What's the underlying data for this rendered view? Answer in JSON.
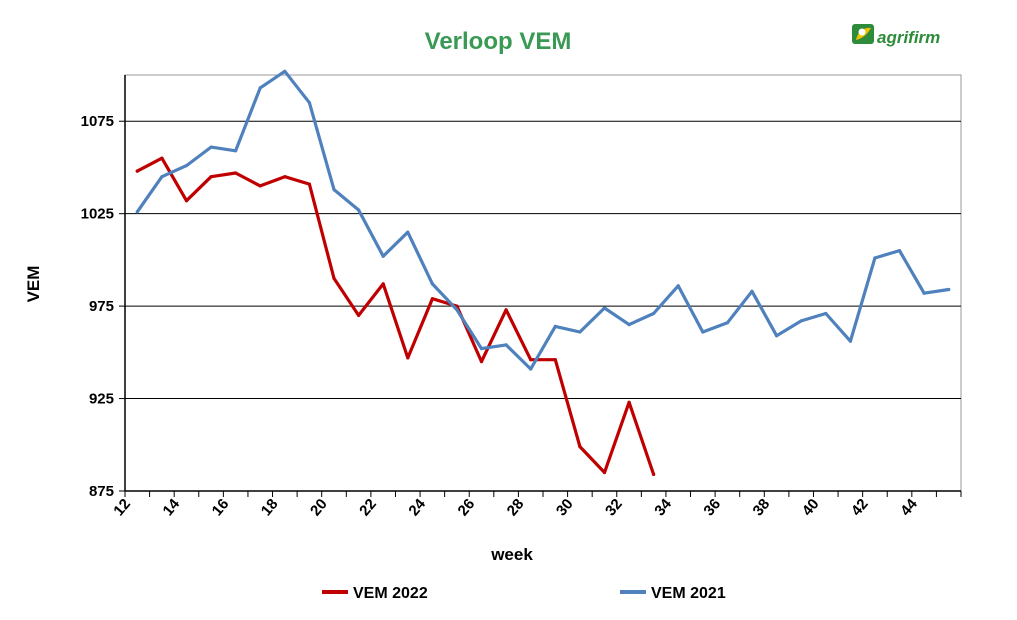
{
  "logo": {
    "text": "agrifirm",
    "color": "#2e8b3a",
    "accent": "#f2c200"
  },
  "chart_data": {
    "type": "line",
    "title": "Verloop VEM",
    "title_color": "#3a9a55",
    "xlabel": "week",
    "ylabel": "VEM",
    "xlim": [
      12,
      46
    ],
    "ylim": [
      875,
      1100
    ],
    "x_ticks": [
      12,
      14,
      16,
      18,
      20,
      22,
      24,
      26,
      28,
      30,
      32,
      34,
      36,
      38,
      40,
      42,
      44
    ],
    "y_ticks": [
      875,
      925,
      975,
      1025,
      1075
    ],
    "grid": "horizontal",
    "legend_position": "bottom",
    "series": [
      {
        "name": "VEM 2022",
        "color": "#c00000",
        "x": [
          12.5,
          13.5,
          14.5,
          15.5,
          16.5,
          17.5,
          18.5,
          19.5,
          20.5,
          21.5,
          22.5,
          23.5,
          24.5,
          25.5,
          26.5,
          27.5,
          28.5,
          29.5,
          30.5,
          31.5,
          32.5,
          33.5
        ],
        "values": [
          1048,
          1055,
          1032,
          1045,
          1047,
          1040,
          1045,
          1041,
          990,
          970,
          987,
          947,
          979,
          975,
          945,
          973,
          946,
          946,
          899,
          885,
          923,
          884
        ]
      },
      {
        "name": "VEM 2021",
        "color": "#4f81bd",
        "x": [
          12.5,
          13.5,
          14.5,
          15.5,
          16.5,
          17.5,
          18.5,
          19.5,
          20.5,
          21.5,
          22.5,
          23.5,
          24.5,
          25.5,
          26.5,
          27.5,
          28.5,
          29.5,
          30.5,
          31.5,
          32.5,
          33.5,
          34.5,
          35.5,
          36.5,
          37.5,
          38.5,
          39.5,
          40.5,
          41.5,
          42.5,
          43.5,
          44.5,
          45.5
        ],
        "values": [
          1026,
          1045,
          1051,
          1061,
          1059,
          1093,
          1102,
          1085,
          1038,
          1027,
          1002,
          1015,
          987,
          973,
          952,
          954,
          941,
          964,
          961,
          974,
          965,
          971,
          986,
          961,
          966,
          983,
          959,
          967,
          971,
          956,
          1001,
          1005,
          982,
          984
        ]
      }
    ]
  }
}
